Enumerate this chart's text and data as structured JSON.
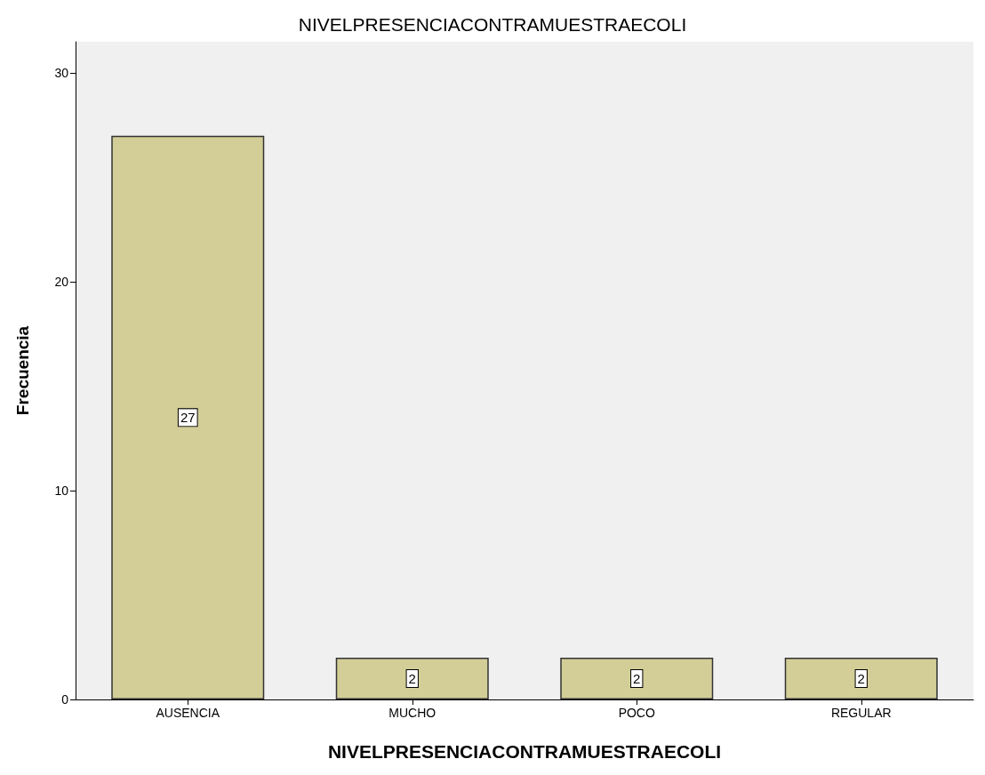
{
  "chart_data": {
    "type": "bar",
    "title": "NIVELPRESENCIACONTRAMUESTRAECOLI",
    "xlabel": "NIVELPRESENCIACONTRAMUESTRAECOLI",
    "ylabel": "Frecuencia",
    "categories": [
      "AUSENCIA",
      "MUCHO",
      "POCO",
      "REGULAR"
    ],
    "values": [
      27,
      2,
      2,
      2
    ],
    "color": "#d3ce97",
    "ylim": [
      0,
      31.5
    ],
    "yticks": [
      0,
      10,
      20,
      30
    ],
    "grid": false,
    "data_labels": true
  }
}
